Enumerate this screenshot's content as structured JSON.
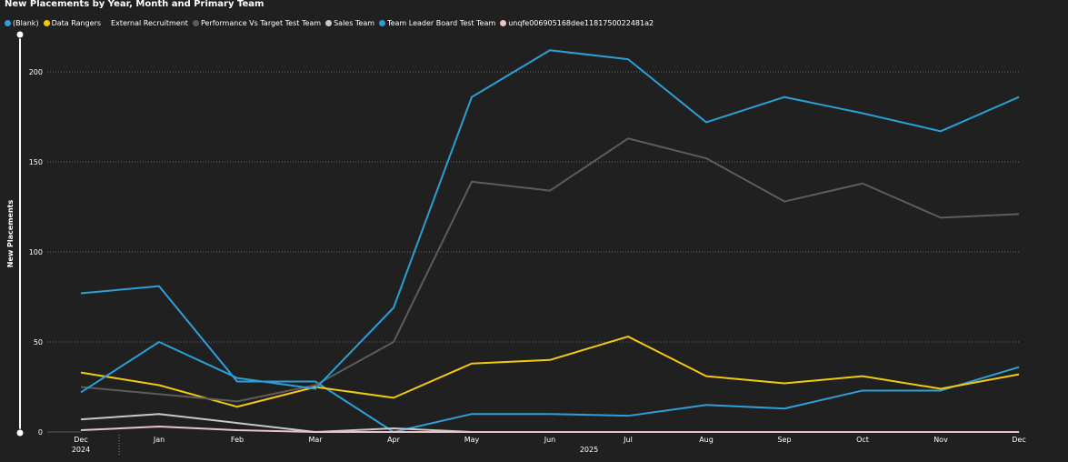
{
  "chart_data": {
    "type": "line",
    "title": "New Placements by Year, Month and Primary Team",
    "ylabel": "New Placements",
    "xlabel": "",
    "ylim": [
      0,
      220
    ],
    "yticks": [
      0,
      50,
      100,
      150,
      200
    ],
    "grid": true,
    "legend_position": "top-left",
    "categories": [
      "Dec",
      "Jan",
      "Feb",
      "Mar",
      "Apr",
      "May",
      "Jun",
      "Jul",
      "Aug",
      "Sep",
      "Oct",
      "Nov",
      "Dec"
    ],
    "year_labels": [
      {
        "label": "2024",
        "at_index": 0
      },
      {
        "label": "2025",
        "at_index": 6.5
      }
    ],
    "series": [
      {
        "name": "(Blank)",
        "color": "#2f9fd8",
        "legend_dot": true,
        "values": [
          77,
          81,
          28,
          28,
          0,
          10,
          10,
          9,
          15,
          13,
          23,
          23,
          36
        ]
      },
      {
        "name": "Data Rangers",
        "color": "#f2c811",
        "legend_dot": true,
        "values": [
          33,
          26,
          14,
          25,
          19,
          38,
          40,
          53,
          31,
          27,
          31,
          24,
          32
        ]
      },
      {
        "name": "External Recruitment",
        "color": "#202020",
        "legend_dot": false,
        "values": [
          0,
          0,
          0,
          0,
          0,
          0,
          0,
          0,
          0,
          0,
          0,
          0,
          0
        ]
      },
      {
        "name": "Performance Vs Target Test Team",
        "color": "#5c5c5c",
        "legend_dot": true,
        "values": [
          25,
          21,
          17,
          26,
          50,
          139,
          134,
          163,
          152,
          128,
          138,
          119,
          121
        ]
      },
      {
        "name": "Sales Team",
        "color": "#c8c8c8",
        "legend_dot": true,
        "values": [
          7,
          10,
          5,
          0,
          2,
          0,
          0,
          0,
          0,
          0,
          0,
          0,
          0
        ]
      },
      {
        "name": "Team Leader Board Test Team",
        "color": "#2a9fd6",
        "legend_dot": true,
        "values": [
          22,
          50,
          30,
          24,
          69,
          186,
          212,
          207,
          172,
          186,
          177,
          167,
          186
        ]
      },
      {
        "name": "unqfe006905168dee1181750022481a2",
        "color": "#e8c4c4",
        "legend_dot": true,
        "values": [
          1,
          3,
          1,
          0,
          0,
          0,
          0,
          0,
          0,
          0,
          0,
          0,
          0
        ]
      }
    ]
  }
}
